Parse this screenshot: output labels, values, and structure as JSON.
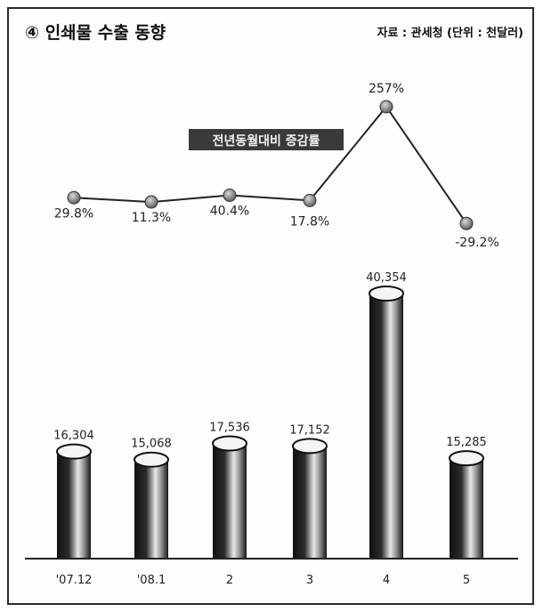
{
  "title": "④ 인쇄물 수출 동향",
  "source": "자료 : 관세청 (단위 : 천달러)",
  "chart_data": [
    {
      "type": "line",
      "series_label": "전년동월대비 증감률",
      "categories": [
        "'07.12",
        "'08.1",
        "2",
        "3",
        "4",
        "5"
      ],
      "values": [
        29.8,
        11.3,
        40.4,
        17.8,
        257,
        -29.2
      ],
      "value_labels": [
        "29.8%",
        "11.3%",
        "40.4%",
        "17.8%",
        "257%",
        "-29.2%"
      ]
    },
    {
      "type": "bar",
      "categories": [
        "'07.12",
        "'08.1",
        "2",
        "3",
        "4",
        "5"
      ],
      "values": [
        16304,
        15068,
        17536,
        17152,
        40354,
        15285
      ],
      "value_labels": [
        "16,304",
        "15,068",
        "17,536",
        "17,152",
        "40,354",
        "15,285"
      ]
    }
  ],
  "colors": {
    "bar_dark": "#1a1a1a",
    "bar_light": "#d9d9d9",
    "marker": "#7a7a7a",
    "line": "#222222",
    "label_bg": "#3a3a3a"
  }
}
